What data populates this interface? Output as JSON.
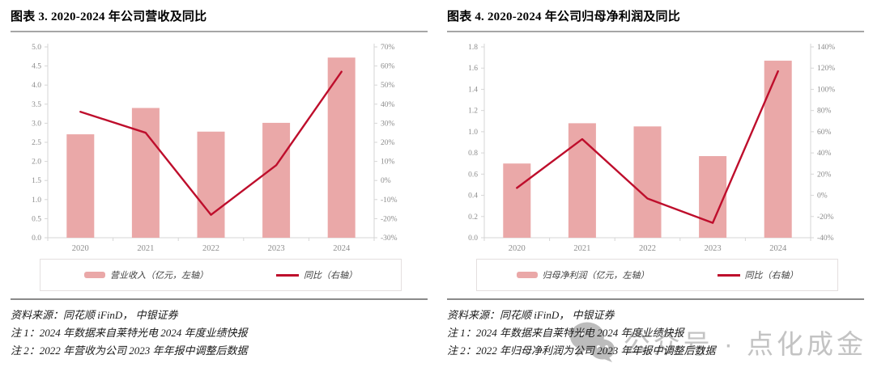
{
  "colors": {
    "bar_fill": "#EAA8A8",
    "line_stroke": "#BE0E2C",
    "axis_line": "#d6d6d6",
    "tick_label": "#8c8c8c",
    "watermark": "#c3c3c3"
  },
  "figures": [
    {
      "title": "图表 3. 2020-2024 年公司营收及同比",
      "legend_bar_label": "营业收入（亿元，左轴）",
      "legend_line_label": "同比（右轴）",
      "source": "资料来源：同花顺 iFinD，  中银证券",
      "note1": "注 1：2024 年数据来自莱特光电 2024 年度业绩快报",
      "note2": "注 2：2022 年营收为公司 2023 年年报中调整后数据"
    },
    {
      "title": "图表 4. 2020-2024 年公司归母净利润及同比",
      "legend_bar_label": "归母净利润（亿元，左轴）",
      "legend_line_label": "同比（右轴）",
      "source": "资料来源：同花顺 iFinD，  中银证券",
      "note1": "注 1：2024 年数据来自莱特光电 2024 年度业绩快报",
      "note2": "注 2：2022 年归母净利润为公司 2023 年年报中调整后数据"
    }
  ],
  "chart_data": [
    {
      "type": "bar",
      "subtype": "combo-bar-line-dual-axis",
      "title": "图表 3. 2020-2024 年公司营收及同比",
      "categories": [
        "2020",
        "2021",
        "2022",
        "2023",
        "2024"
      ],
      "series": [
        {
          "name": "营业收入（亿元，左轴）",
          "type": "bar",
          "axis": "left",
          "values": [
            2.71,
            3.4,
            2.78,
            3.01,
            4.72
          ]
        },
        {
          "name": "同比（右轴）",
          "type": "line",
          "axis": "right",
          "values": [
            36,
            25,
            -18,
            8,
            57
          ]
        }
      ],
      "left_axis": {
        "min": 0,
        "max": 5.0,
        "step": 0.5,
        "decimals": 1
      },
      "right_axis": {
        "min": -30,
        "max": 70,
        "step": 10,
        "suffix": "%"
      },
      "grid": false,
      "legend_position": "bottom"
    },
    {
      "type": "bar",
      "subtype": "combo-bar-line-dual-axis",
      "title": "图表 4. 2020-2024 年公司归母净利润及同比",
      "categories": [
        "2020",
        "2021",
        "2022",
        "2023",
        "2024"
      ],
      "series": [
        {
          "name": "归母净利润（亿元，左轴）",
          "type": "bar",
          "axis": "left",
          "values": [
            0.7,
            1.08,
            1.05,
            0.77,
            1.67
          ]
        },
        {
          "name": "同比（右轴）",
          "type": "line",
          "axis": "right",
          "values": [
            7,
            53,
            -3,
            -26,
            117
          ]
        }
      ],
      "left_axis": {
        "min": 0,
        "max": 1.8,
        "step": 0.2,
        "decimals": 1
      },
      "right_axis": {
        "min": -40,
        "max": 140,
        "step": 20,
        "suffix": "%"
      },
      "grid": false,
      "legend_position": "bottom"
    }
  ],
  "watermark": {
    "icon": "wechat-icon",
    "text": "公众号 · 点化成金"
  }
}
